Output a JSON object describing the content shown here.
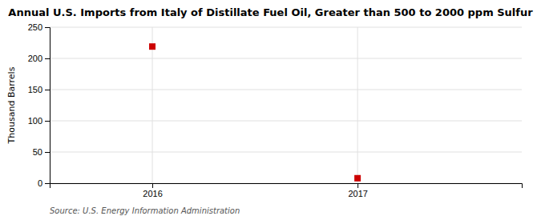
{
  "chart_data": {
    "type": "scatter",
    "title": "Annual U.S. Imports from Italy of Distillate Fuel Oil, Greater than 500 to 2000 ppm Sulfur",
    "y_label": "Thousand Barrels",
    "annotations": [
      "Source: U.S. Energy Information Administration"
    ],
    "x": [
      2016,
      2017
    ],
    "values": [
      219,
      8
    ],
    "xlim": [
      2015.5,
      2017.8
    ],
    "ylim": [
      0,
      250
    ],
    "xticks": [
      2016,
      2017
    ],
    "yticks": [
      0,
      50,
      100,
      150,
      200,
      250
    ],
    "color": "#cc0000",
    "marker": "square",
    "grid": true
  }
}
